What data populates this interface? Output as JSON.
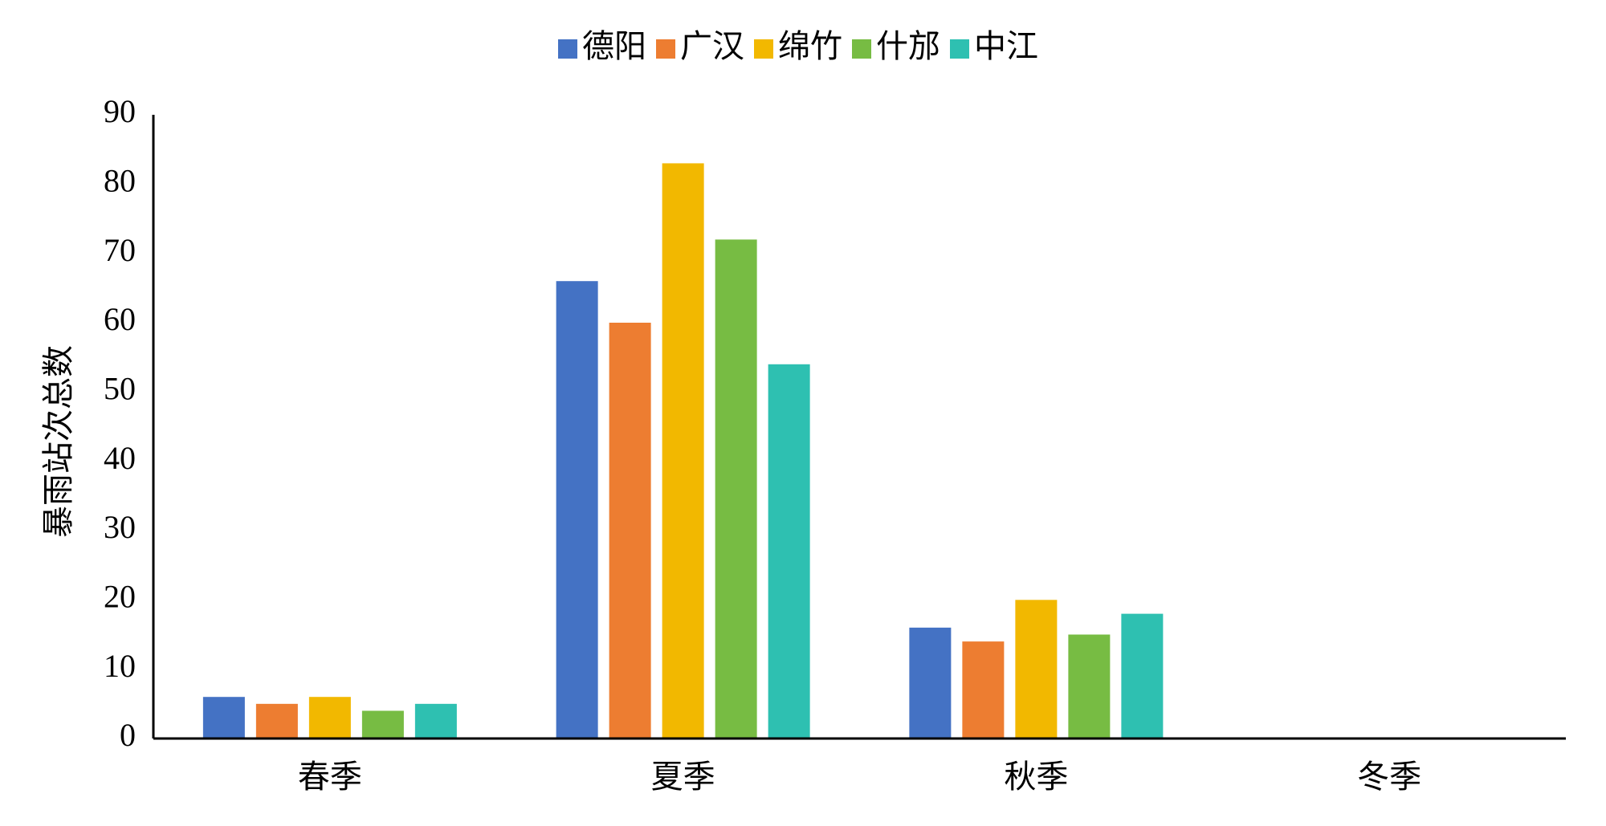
{
  "chart_data": {
    "type": "bar",
    "y_label": "暴雨站次总数",
    "categories": [
      "春季",
      "夏季",
      "秋季",
      "冬季"
    ],
    "series": [
      {
        "name": "德阳",
        "color": "#4472c4",
        "values": [
          6,
          66,
          16,
          0
        ]
      },
      {
        "name": "广汉",
        "color": "#ed7d31",
        "values": [
          5,
          60,
          14,
          0
        ]
      },
      {
        "name": "绵竹",
        "color": "#f2b800",
        "values": [
          6,
          83,
          20,
          0
        ]
      },
      {
        "name": "什邡",
        "color": "#77bc43",
        "values": [
          4,
          72,
          15,
          0
        ]
      },
      {
        "name": "中江",
        "color": "#2ec0b1",
        "values": [
          5,
          54,
          18,
          0
        ]
      }
    ],
    "ylim": [
      0,
      90
    ],
    "yticks": [
      0,
      10,
      20,
      30,
      40,
      50,
      60,
      70,
      80,
      90
    ],
    "grid": false,
    "legend": "top"
  }
}
